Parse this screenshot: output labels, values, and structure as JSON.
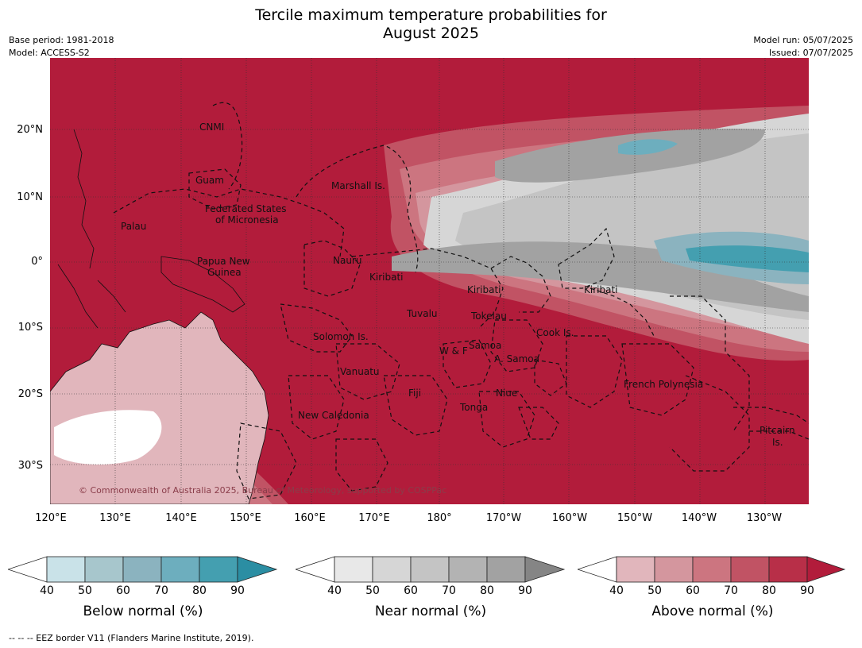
{
  "title_line1": "Tercile maximum temperature probabilities for",
  "title_line2": "August 2025",
  "meta": {
    "base_period": "Base period: 1981-2018",
    "model": "Model: ACCESS-S2",
    "model_run": "Model run: 05/07/2025",
    "issued": "Issued: 07/07/2025"
  },
  "copyright": "© Commonwealth of Australia 2025, Bureau of Meteorology, supported by COSPPac",
  "lat_ticks": [
    "20°N",
    "10°N",
    "0°",
    "10°S",
    "20°S",
    "30°S"
  ],
  "lon_ticks": [
    "120°E",
    "130°E",
    "140°E",
    "150°E",
    "160°E",
    "170°E",
    "180°",
    "170°W",
    "160°W",
    "150°W",
    "140°W",
    "130°W"
  ],
  "regions": [
    {
      "name": "CNMI"
    },
    {
      "name": "Guam"
    },
    {
      "name": "Marshall Is."
    },
    {
      "name": "Palau"
    },
    {
      "name": "Federated States"
    },
    {
      "name": "of Micronesia"
    },
    {
      "name": "Papua New"
    },
    {
      "name": "Guinea"
    },
    {
      "name": "Nauru"
    },
    {
      "name": "Kiribati"
    },
    {
      "name": "Kiribati"
    },
    {
      "name": "Kiribati"
    },
    {
      "name": "Tuvalu"
    },
    {
      "name": "Tokelau"
    },
    {
      "name": "Solomon Is."
    },
    {
      "name": "Cook Is."
    },
    {
      "name": "Samoa"
    },
    {
      "name": "W & F"
    },
    {
      "name": "A. Samoa"
    },
    {
      "name": "Vanuatu"
    },
    {
      "name": "Fiji"
    },
    {
      "name": "Niue"
    },
    {
      "name": "French Polynesia"
    },
    {
      "name": "Tonga"
    },
    {
      "name": "New Caledonia"
    },
    {
      "name": "Pitcairn"
    },
    {
      "name": "Is."
    }
  ],
  "colorbars": [
    {
      "label": "Below normal (%)",
      "ticks": [
        "40",
        "50",
        "60",
        "70",
        "80",
        "90"
      ],
      "colors": [
        "#c9e2e8",
        "#a7c6cc",
        "#8bb3bf",
        "#6daebe",
        "#449fb0",
        "#2b8ea3"
      ]
    },
    {
      "label": "Near normal (%)",
      "ticks": [
        "40",
        "50",
        "60",
        "70",
        "80",
        "90"
      ],
      "colors": [
        "#e8e8e8",
        "#d6d6d6",
        "#c4c4c4",
        "#b3b3b3",
        "#a2a2a2",
        "#858585"
      ]
    },
    {
      "label": "Above normal (%)",
      "ticks": [
        "40",
        "50",
        "60",
        "70",
        "80",
        "90"
      ],
      "colors": [
        "#e1b6bc",
        "#d4969e",
        "#cc7580",
        "#c15364",
        "#b82f48",
        "#b21c3b"
      ]
    }
  ],
  "footer": "--  --  -- EEZ border V11 (Flanders Marine Institute, 2019).",
  "colors": {
    "land_above": "#b21c3b",
    "sea_above": "#b82f48"
  }
}
